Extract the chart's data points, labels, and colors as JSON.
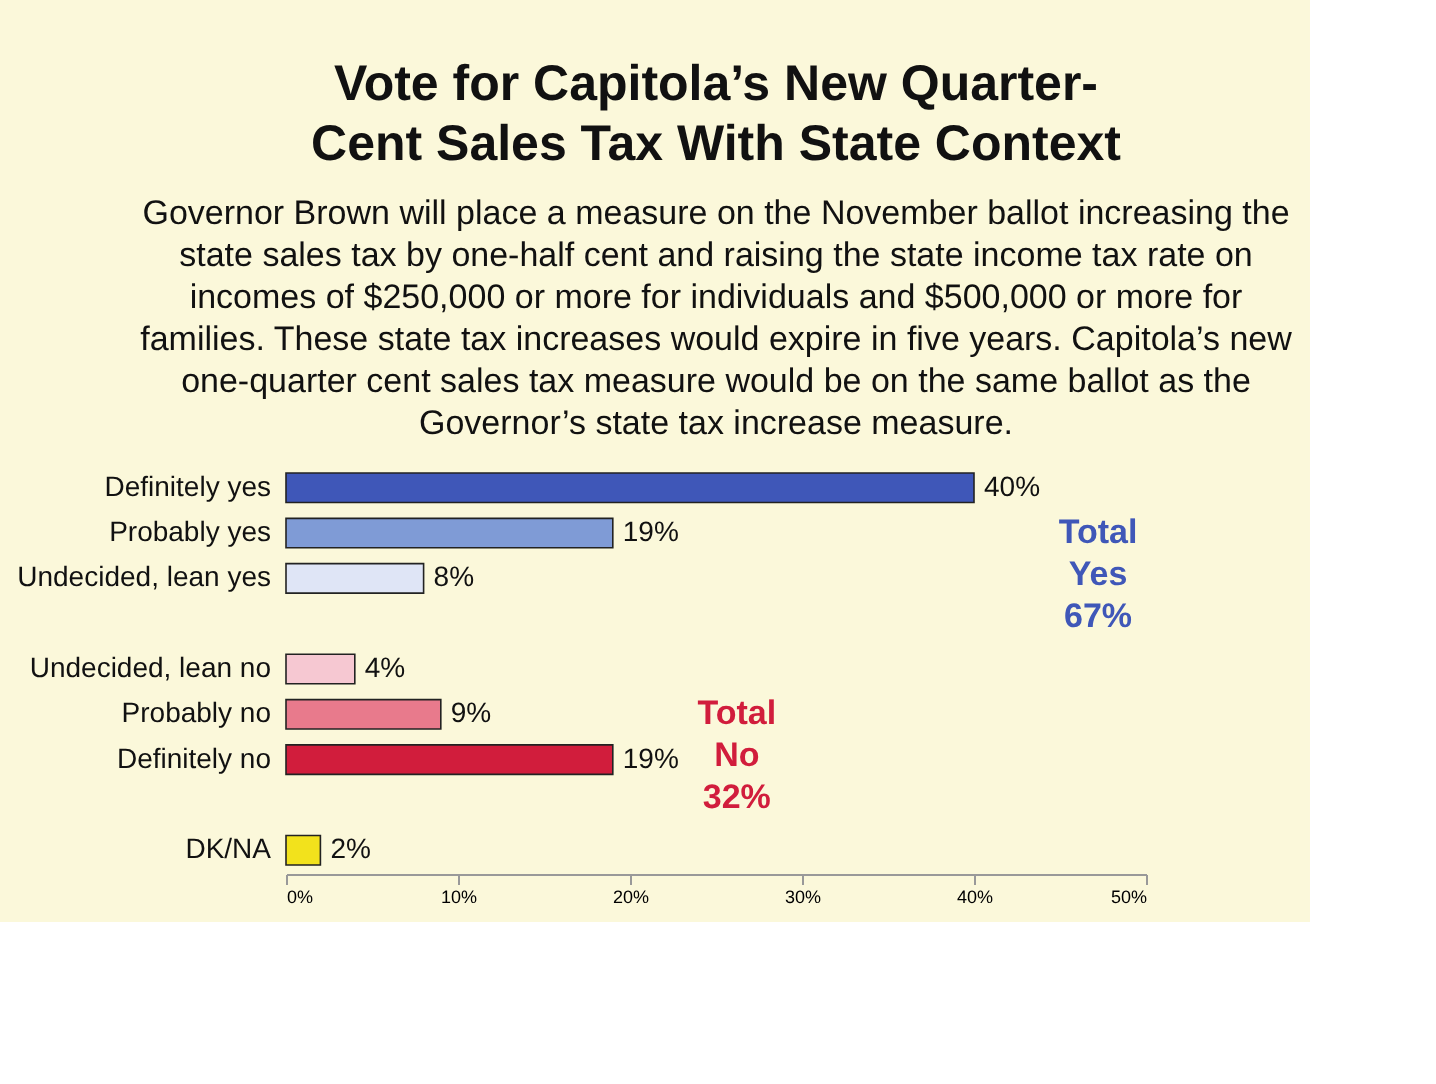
{
  "chart_data": {
    "type": "bar",
    "orientation": "horizontal",
    "title": "Vote for Capitola’s New Quarter-\nCent Sales Tax With State Context",
    "subtitle": "Governor Brown will place a measure on the November ballot increasing the\nstate sales tax by one-half cent and raising the state income tax rate on\nincomes of $250,000 or more for individuals and $500,000 or more for\nfamilies. These state tax increases would expire in five years. Capitola’s new\none-quarter cent sales tax measure would be on the same ballot as the\nGovernor’s state tax increase measure.",
    "categories": [
      "Definitely yes",
      "Probably yes",
      "Undecided, lean yes",
      null,
      "Undecided, lean no",
      "Probably no",
      "Definitely no",
      null,
      "DK/NA"
    ],
    "values": [
      40,
      19,
      8,
      null,
      4,
      9,
      19,
      null,
      2
    ],
    "value_labels": [
      "40%",
      "19%",
      "8%",
      null,
      "4%",
      "9%",
      "19%",
      null,
      "2%"
    ],
    "colors": [
      "#3f57b8",
      "#7f9bd6",
      "#dfe5f6",
      null,
      "#f6c8d2",
      "#e87a8c",
      "#d11d3c",
      null,
      "#f2e21c"
    ],
    "xlim": [
      0,
      50
    ],
    "xticks": [
      {
        "value": 0,
        "label": "0%"
      },
      {
        "value": 10,
        "label": "10%"
      },
      {
        "value": 20,
        "label": "20%"
      },
      {
        "value": 30,
        "label": "30%"
      },
      {
        "value": 40,
        "label": "40%"
      },
      {
        "value": 50,
        "label": "50%"
      }
    ],
    "annotations": [
      "Total\nYes\n67%",
      "Total\nNo\n32%"
    ],
    "grid": false
  }
}
